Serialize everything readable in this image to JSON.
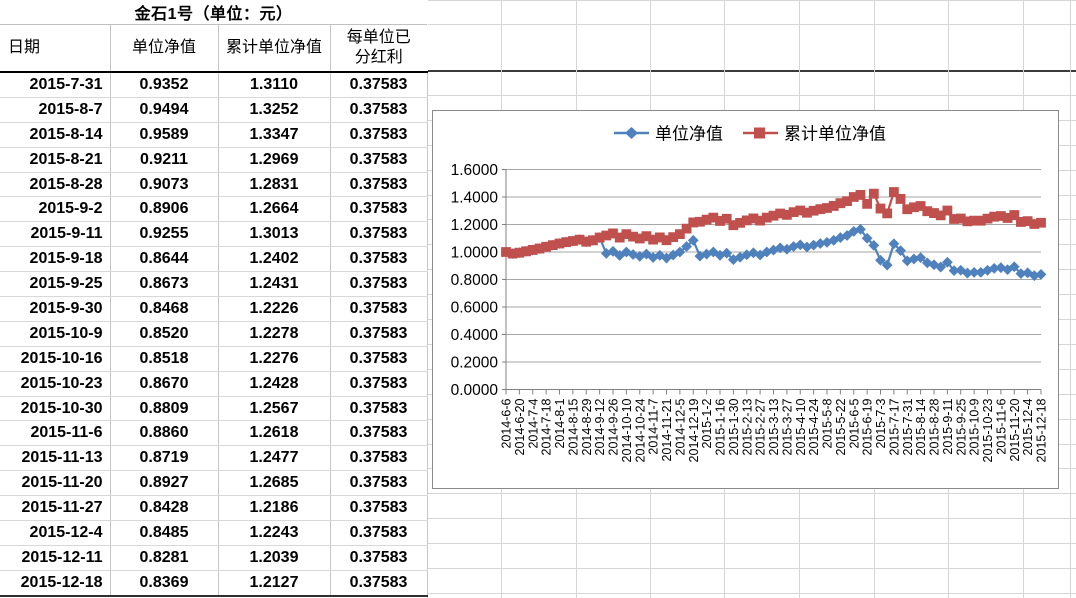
{
  "table": {
    "title": "金石1号（单位：元）",
    "columns": [
      "日期",
      "单位净值",
      "累计单位净值",
      "每单位已分红利"
    ],
    "rows": [
      [
        "2015-7-31",
        "0.9352",
        "1.3110",
        "0.37583"
      ],
      [
        "2015-8-7",
        "0.9494",
        "1.3252",
        "0.37583"
      ],
      [
        "2015-8-14",
        "0.9589",
        "1.3347",
        "0.37583"
      ],
      [
        "2015-8-21",
        "0.9211",
        "1.2969",
        "0.37583"
      ],
      [
        "2015-8-28",
        "0.9073",
        "1.2831",
        "0.37583"
      ],
      [
        "2015-9-2",
        "0.8906",
        "1.2664",
        "0.37583"
      ],
      [
        "2015-9-11",
        "0.9255",
        "1.3013",
        "0.37583"
      ],
      [
        "2015-9-18",
        "0.8644",
        "1.2402",
        "0.37583"
      ],
      [
        "2015-9-25",
        "0.8673",
        "1.2431",
        "0.37583"
      ],
      [
        "2015-9-30",
        "0.8468",
        "1.2226",
        "0.37583"
      ],
      [
        "2015-10-9",
        "0.8520",
        "1.2278",
        "0.37583"
      ],
      [
        "2015-10-16",
        "0.8518",
        "1.2276",
        "0.37583"
      ],
      [
        "2015-10-23",
        "0.8670",
        "1.2428",
        "0.37583"
      ],
      [
        "2015-10-30",
        "0.8809",
        "1.2567",
        "0.37583"
      ],
      [
        "2015-11-6",
        "0.8860",
        "1.2618",
        "0.37583"
      ],
      [
        "2015-11-13",
        "0.8719",
        "1.2477",
        "0.37583"
      ],
      [
        "2015-11-20",
        "0.8927",
        "1.2685",
        "0.37583"
      ],
      [
        "2015-11-27",
        "0.8428",
        "1.2186",
        "0.37583"
      ],
      [
        "2015-12-4",
        "0.8485",
        "1.2243",
        "0.37583"
      ],
      [
        "2015-12-11",
        "0.8281",
        "1.2039",
        "0.37583"
      ],
      [
        "2015-12-18",
        "0.8369",
        "1.2127",
        "0.37583"
      ]
    ]
  },
  "chart_data": {
    "type": "line",
    "title": "",
    "legend_position": "top",
    "grid": true,
    "ylim": [
      0,
      1.6
    ],
    "y_tick_step": 0.2,
    "y_tick_labels": [
      "0.0000",
      "0.2000",
      "0.4000",
      "0.6000",
      "0.8000",
      "1.0000",
      "1.2000",
      "1.4000",
      "1.6000"
    ],
    "x_label_step": 2,
    "x": [
      "2014-6-6",
      "2014-6-13",
      "2014-6-20",
      "2014-6-27",
      "2014-7-4",
      "2014-7-11",
      "2014-7-18",
      "2014-7-25",
      "2014-8-1",
      "2014-8-8",
      "2014-8-15",
      "2014-8-22",
      "2014-8-29",
      "2014-9-5",
      "2014-9-12",
      "2014-9-19",
      "2014-9-26",
      "2014-10-3",
      "2014-10-10",
      "2014-10-17",
      "2014-10-24",
      "2014-10-31",
      "2014-11-7",
      "2014-11-14",
      "2014-11-21",
      "2014-11-28",
      "2014-12-5",
      "2014-12-12",
      "2014-12-19",
      "2014-12-26",
      "2015-1-2",
      "2015-1-9",
      "2015-1-16",
      "2015-1-23",
      "2015-1-30",
      "2015-2-6",
      "2015-2-13",
      "2015-2-20",
      "2015-2-27",
      "2015-3-6",
      "2015-3-13",
      "2015-3-20",
      "2015-3-27",
      "2015-4-3",
      "2015-4-10",
      "2015-4-17",
      "2015-4-24",
      "2015-5-1",
      "2015-5-8",
      "2015-5-15",
      "2015-5-22",
      "2015-5-29",
      "2015-6-5",
      "2015-6-12",
      "2015-6-19",
      "2015-6-26",
      "2015-7-3",
      "2015-7-10",
      "2015-7-17",
      "2015-7-24",
      "2015-7-31",
      "2015-8-7",
      "2015-8-14",
      "2015-8-21",
      "2015-8-28",
      "2015-9-2",
      "2015-9-11",
      "2015-9-18",
      "2015-9-25",
      "2015-9-30",
      "2015-10-9",
      "2015-10-16",
      "2015-10-23",
      "2015-10-30",
      "2015-11-6",
      "2015-11-13",
      "2015-11-20",
      "2015-11-27",
      "2015-12-4",
      "2015-12-11",
      "2015-12-18"
    ],
    "series": [
      {
        "name": "单位净值",
        "color": "#4F81BD",
        "marker": "diamond",
        "values": [
          1.0,
          0.988,
          0.995,
          1.005,
          1.015,
          1.025,
          1.038,
          1.05,
          1.062,
          1.072,
          1.08,
          1.09,
          1.075,
          1.085,
          1.105,
          0.99,
          1.005,
          0.975,
          1.0,
          0.982,
          0.968,
          0.985,
          0.96,
          0.976,
          0.956,
          0.978,
          1.0,
          1.04,
          1.085,
          0.97,
          0.985,
          1.0,
          0.976,
          0.992,
          0.945,
          0.962,
          0.98,
          0.994,
          0.978,
          1.0,
          1.014,
          1.03,
          1.02,
          1.04,
          1.052,
          1.036,
          1.05,
          1.062,
          1.07,
          1.085,
          1.105,
          1.12,
          1.15,
          1.165,
          1.1,
          1.048,
          0.94,
          0.905,
          1.06,
          1.01,
          0.9352,
          0.9494,
          0.9589,
          0.9211,
          0.9073,
          0.8906,
          0.9255,
          0.8644,
          0.8673,
          0.8468,
          0.852,
          0.8518,
          0.867,
          0.8809,
          0.886,
          0.8719,
          0.8927,
          0.8428,
          0.8485,
          0.8281,
          0.8369
        ]
      },
      {
        "name": "累计单位净值",
        "color": "#C0504D",
        "marker": "square",
        "values": [
          1.0,
          0.988,
          0.995,
          1.005,
          1.015,
          1.025,
          1.038,
          1.05,
          1.062,
          1.072,
          1.08,
          1.09,
          1.075,
          1.085,
          1.105,
          1.12,
          1.135,
          1.105,
          1.13,
          1.112,
          1.098,
          1.115,
          1.09,
          1.106,
          1.086,
          1.108,
          1.13,
          1.17,
          1.215,
          1.22,
          1.235,
          1.25,
          1.226,
          1.242,
          1.195,
          1.212,
          1.23,
          1.244,
          1.228,
          1.25,
          1.264,
          1.28,
          1.27,
          1.29,
          1.302,
          1.286,
          1.3,
          1.312,
          1.32,
          1.335,
          1.355,
          1.37,
          1.4,
          1.415,
          1.35,
          1.424,
          1.316,
          1.281,
          1.436,
          1.386,
          1.311,
          1.3252,
          1.3347,
          1.2969,
          1.2831,
          1.2664,
          1.3013,
          1.2402,
          1.2431,
          1.2226,
          1.2278,
          1.2276,
          1.2428,
          1.2567,
          1.2618,
          1.2477,
          1.2685,
          1.2186,
          1.2243,
          1.2039,
          1.2127
        ]
      }
    ]
  },
  "colors": {
    "series_blue": "#4F81BD",
    "series_red": "#C0504D",
    "chart_gridline": "#a6a6a6",
    "axis": "#808080"
  }
}
